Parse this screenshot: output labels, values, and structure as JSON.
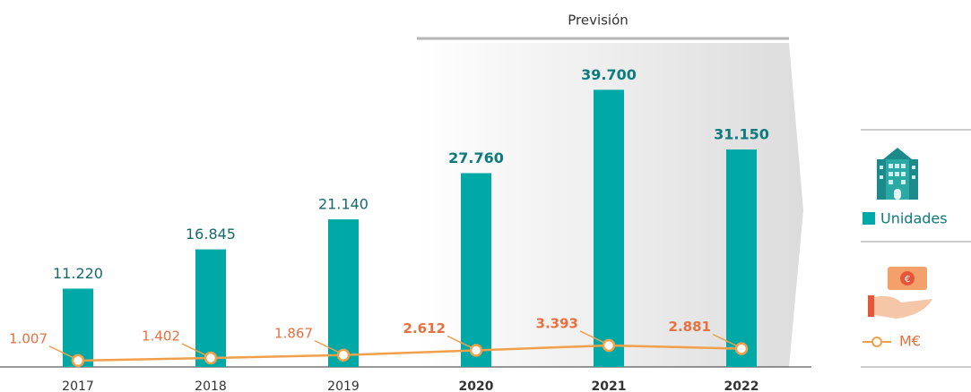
{
  "chart_data": {
    "type": "bar-line",
    "categories": [
      "2017",
      "2018",
      "2019",
      "2020",
      "2021",
      "2022"
    ],
    "series": [
      {
        "name": "Unidades",
        "type": "bar",
        "color": "#00a9a5",
        "values": [
          11220,
          16845,
          21140,
          27760,
          39700,
          31150
        ],
        "value_labels": [
          "11.220",
          "16.845",
          "21.140",
          "27.760",
          "39.700",
          "31.150"
        ]
      },
      {
        "name": "M€",
        "type": "line",
        "axis": "y2",
        "color": "#f0a04b",
        "values": [
          1007,
          1402,
          1867,
          2612,
          3393,
          2881
        ],
        "value_labels": [
          "1.007",
          "1.402",
          "1.867",
          "2.612",
          "3.393",
          "2.881"
        ]
      }
    ],
    "ylim": [
      0,
      50000
    ],
    "y2lim": [
      0,
      55000
    ],
    "forecast": {
      "label": "Previsión",
      "start": "2020"
    },
    "legend": "right"
  }
}
